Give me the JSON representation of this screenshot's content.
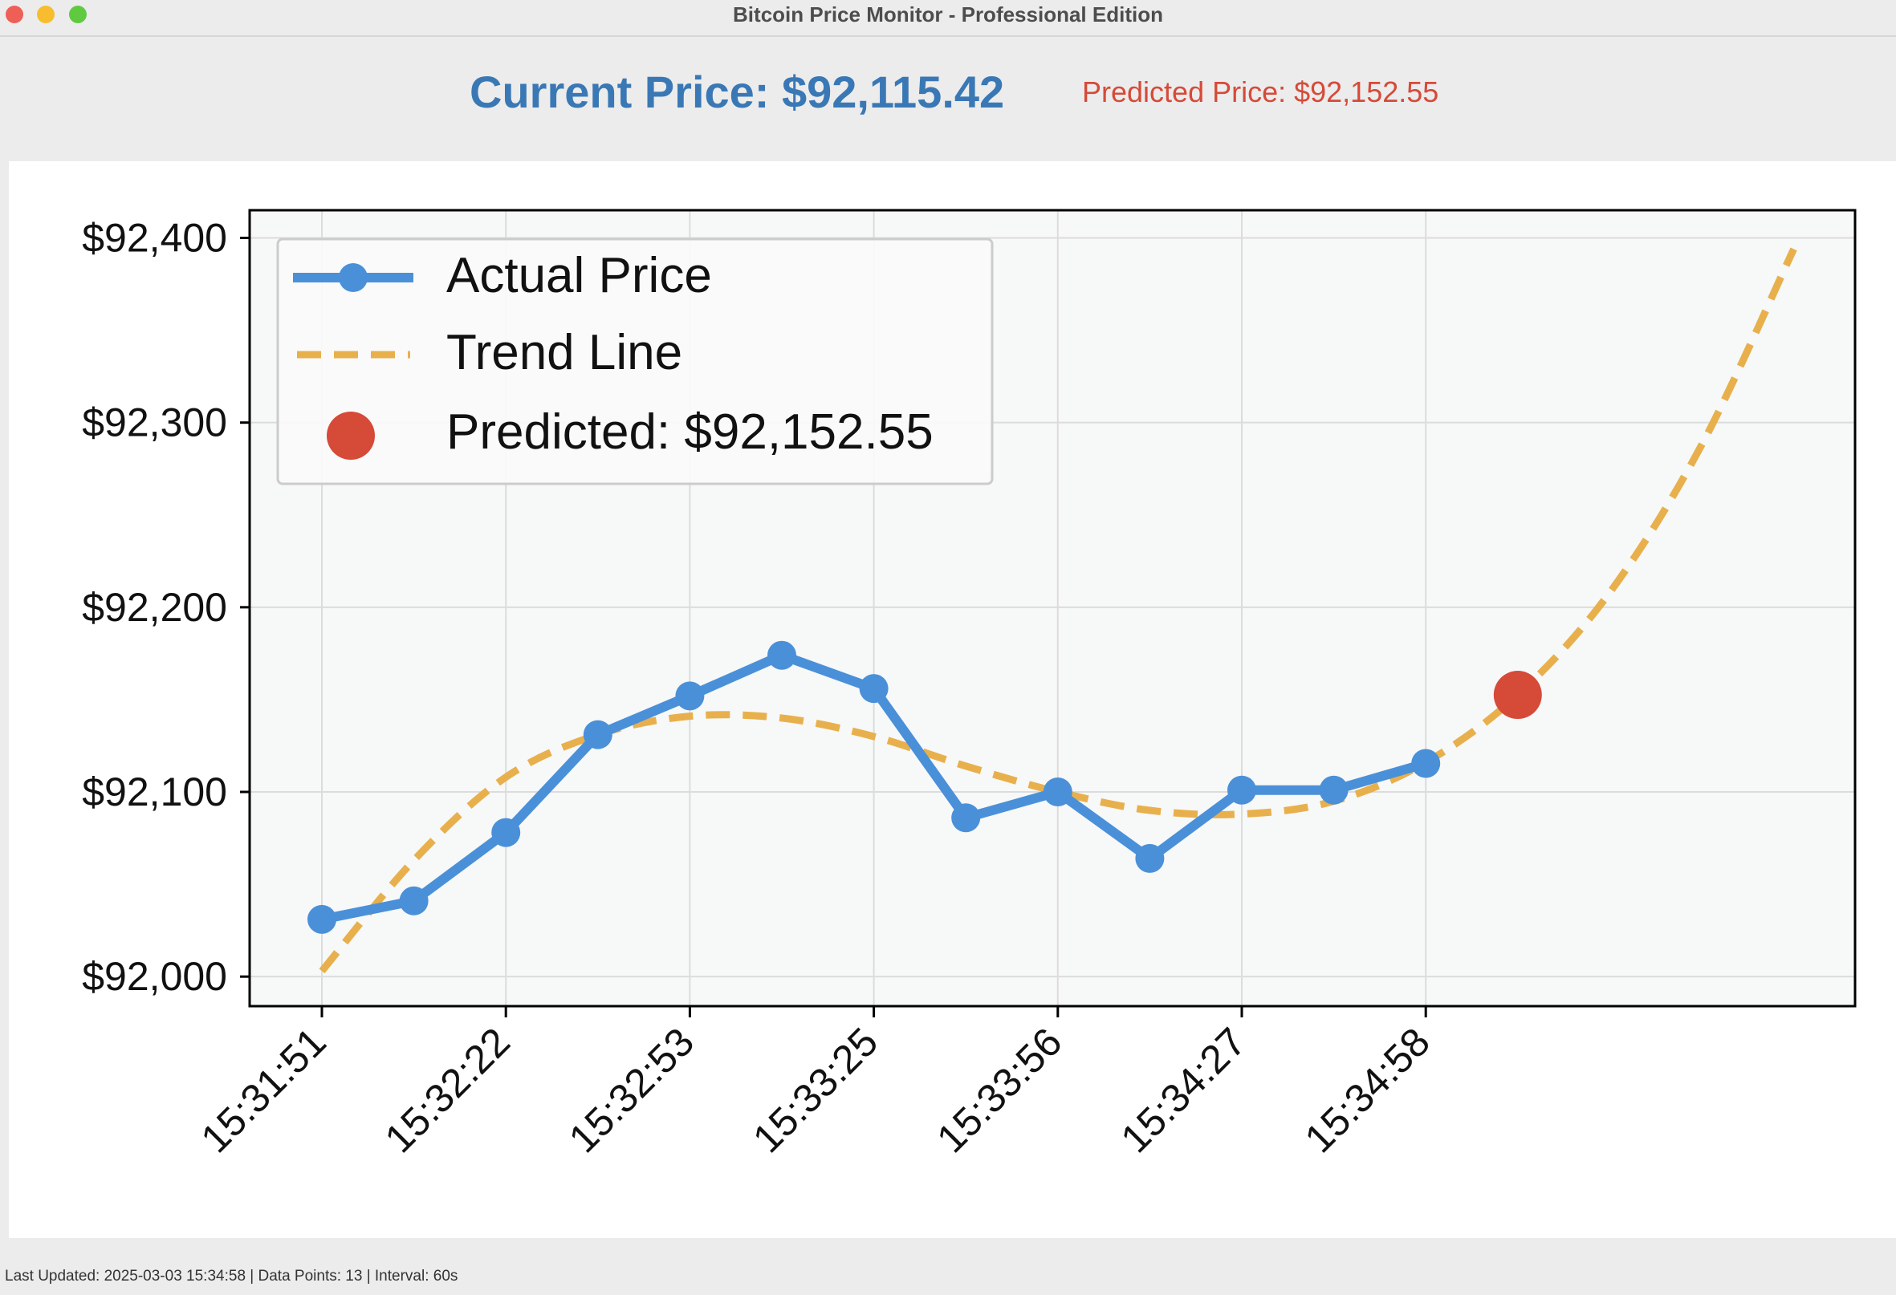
{
  "window": {
    "title": "Bitcoin Price Monitor - Professional Edition"
  },
  "header": {
    "current_price": "Current Price: $92,115.42",
    "predicted_price": "Predicted Price: $92,152.55"
  },
  "status_bar": {
    "text": "Last Updated: 2025-03-03 15:34:58 | Data Points: 13 | Interval: 60s"
  },
  "colors": {
    "actual": "#4a90d9",
    "trend": "#e8b04c",
    "predicted": "#d64a38",
    "current_price_text": "#3a78b5",
    "plot_background": "#f7f8f8"
  },
  "chart_data": {
    "type": "line",
    "x_ticks": [
      "15:31:51",
      "15:32:22",
      "15:32:53",
      "15:33:25",
      "15:33:56",
      "15:34:27",
      "15:34:58"
    ],
    "y_ticks": [
      "$92,000",
      "$92,100",
      "$92,200",
      "$92,300",
      "$92,400"
    ],
    "y_tick_values": [
      92000,
      92100,
      92200,
      92300,
      92400
    ],
    "ylim": [
      91984,
      92415
    ],
    "grid": true,
    "legend_position": "top-left",
    "series": [
      {
        "name": "Actual Price",
        "style": "solid line with markers",
        "values": [
          92031,
          92041,
          92078,
          92131,
          92152,
          92174,
          92156,
          92086,
          92100,
          92064,
          92101,
          92101,
          92115.42
        ]
      },
      {
        "name": "Trend Line",
        "style": "dashed",
        "values": [
          92003,
          92063,
          92108,
          92131,
          92141,
          92140,
          92130,
          92114,
          92100,
          92090,
          92088,
          92095,
          92116,
          92152.55,
          92208,
          92288,
          92394
        ]
      }
    ],
    "prediction": {
      "label": "Predicted: $92,152.55",
      "value": 92152.55,
      "x_index": 13
    }
  }
}
